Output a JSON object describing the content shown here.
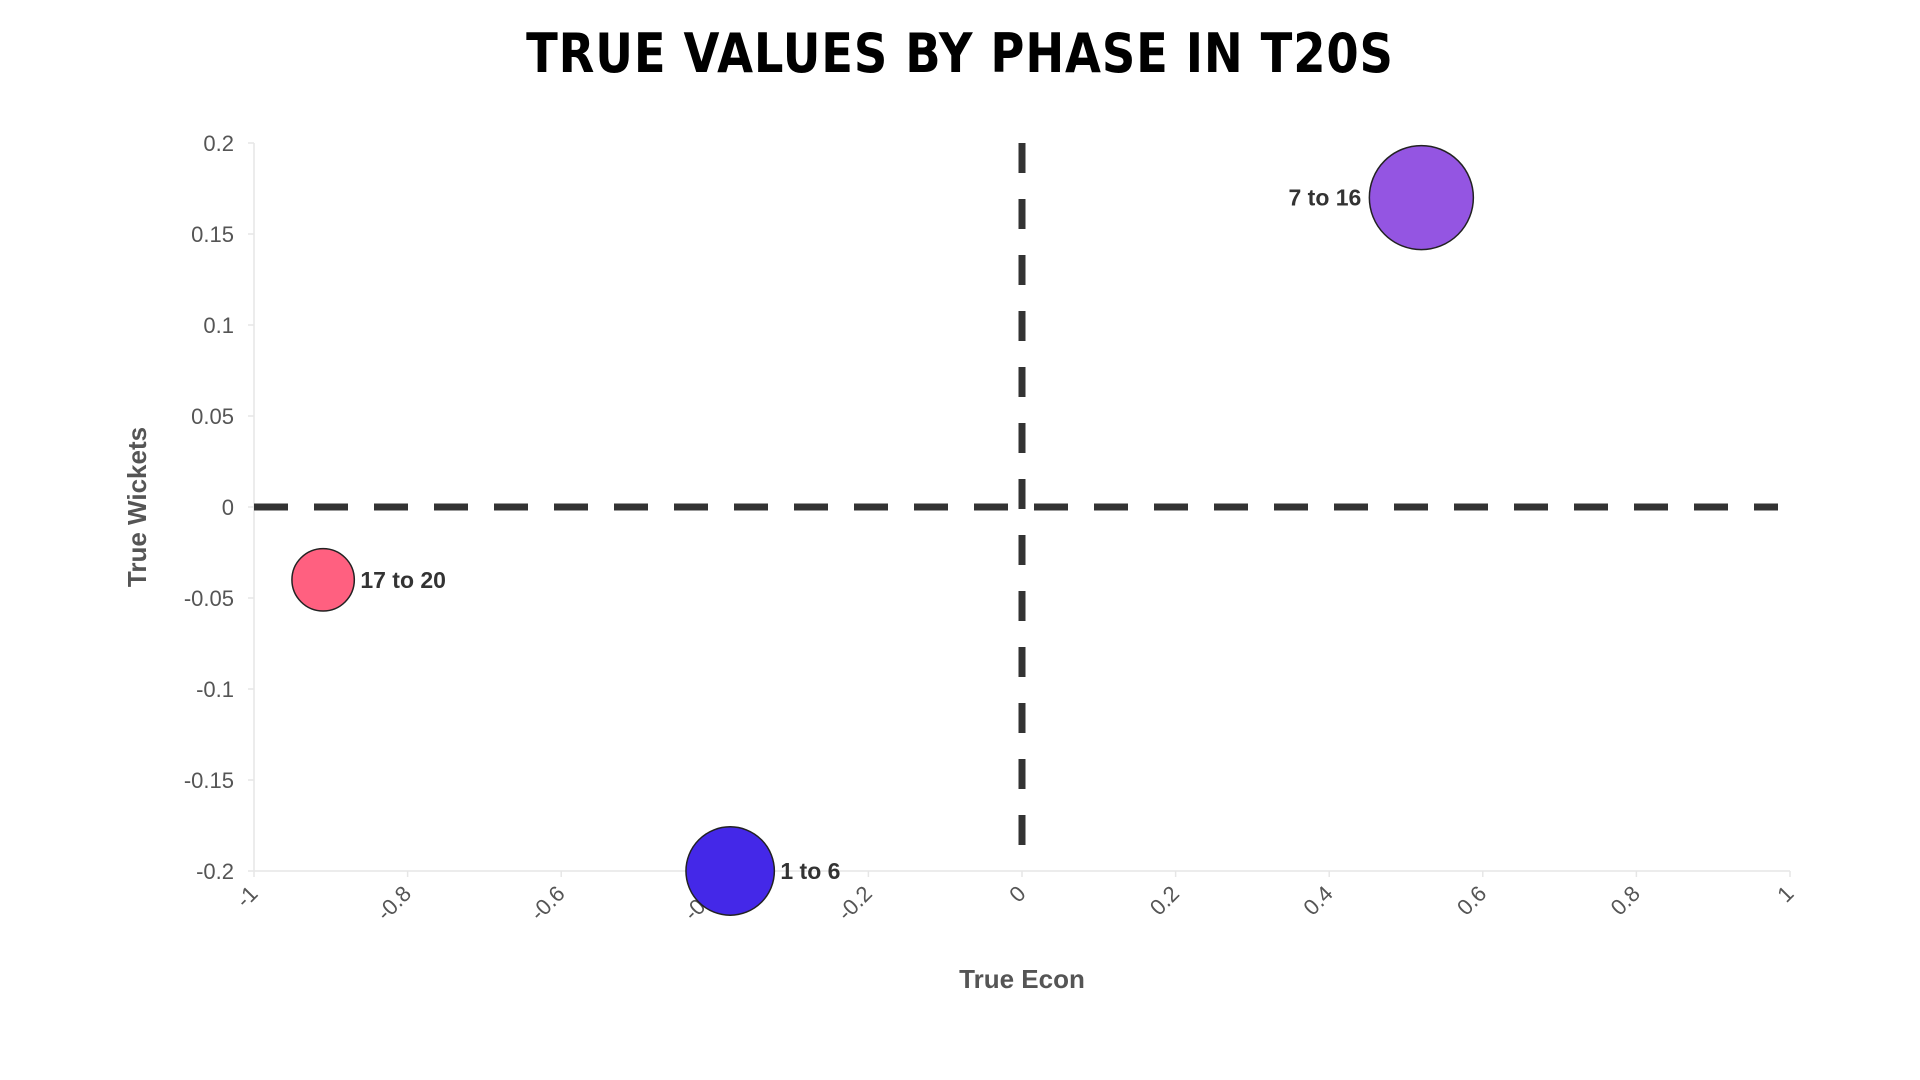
{
  "chart_data": {
    "type": "scatter",
    "title": "TRUE VALUES BY PHASE IN T20S",
    "xlabel": "True Econ",
    "ylabel": "True Wickets",
    "xlim": [
      -1,
      1
    ],
    "ylim": [
      -0.2,
      0.2
    ],
    "x_ticks": [
      "-1",
      "-0.8",
      "-0.6",
      "-0.4",
      "-0.2",
      "0",
      "0.2",
      "0.4",
      "0.6",
      "0.8",
      "1"
    ],
    "y_ticks": [
      "0.2",
      "0.15",
      "0.1",
      "0.05",
      "0",
      "-0.05",
      "-0.1",
      "-0.15",
      "-0.2"
    ],
    "grid": false,
    "reference_lines": [
      {
        "axis": "x",
        "value": 0,
        "style": "dashed"
      },
      {
        "axis": "y",
        "value": 0,
        "style": "dashed"
      }
    ],
    "points": [
      {
        "label": "17 to 20",
        "x": -0.91,
        "y": -0.04,
        "size": 0.6,
        "color": "#ff6080"
      },
      {
        "label": "1 to 6",
        "x": -0.38,
        "y": -0.2,
        "size": 0.85,
        "color": "#4428e8"
      },
      {
        "label": "7 to 16",
        "x": 0.52,
        "y": 0.17,
        "size": 1.0,
        "color": "#9455e2"
      }
    ]
  }
}
